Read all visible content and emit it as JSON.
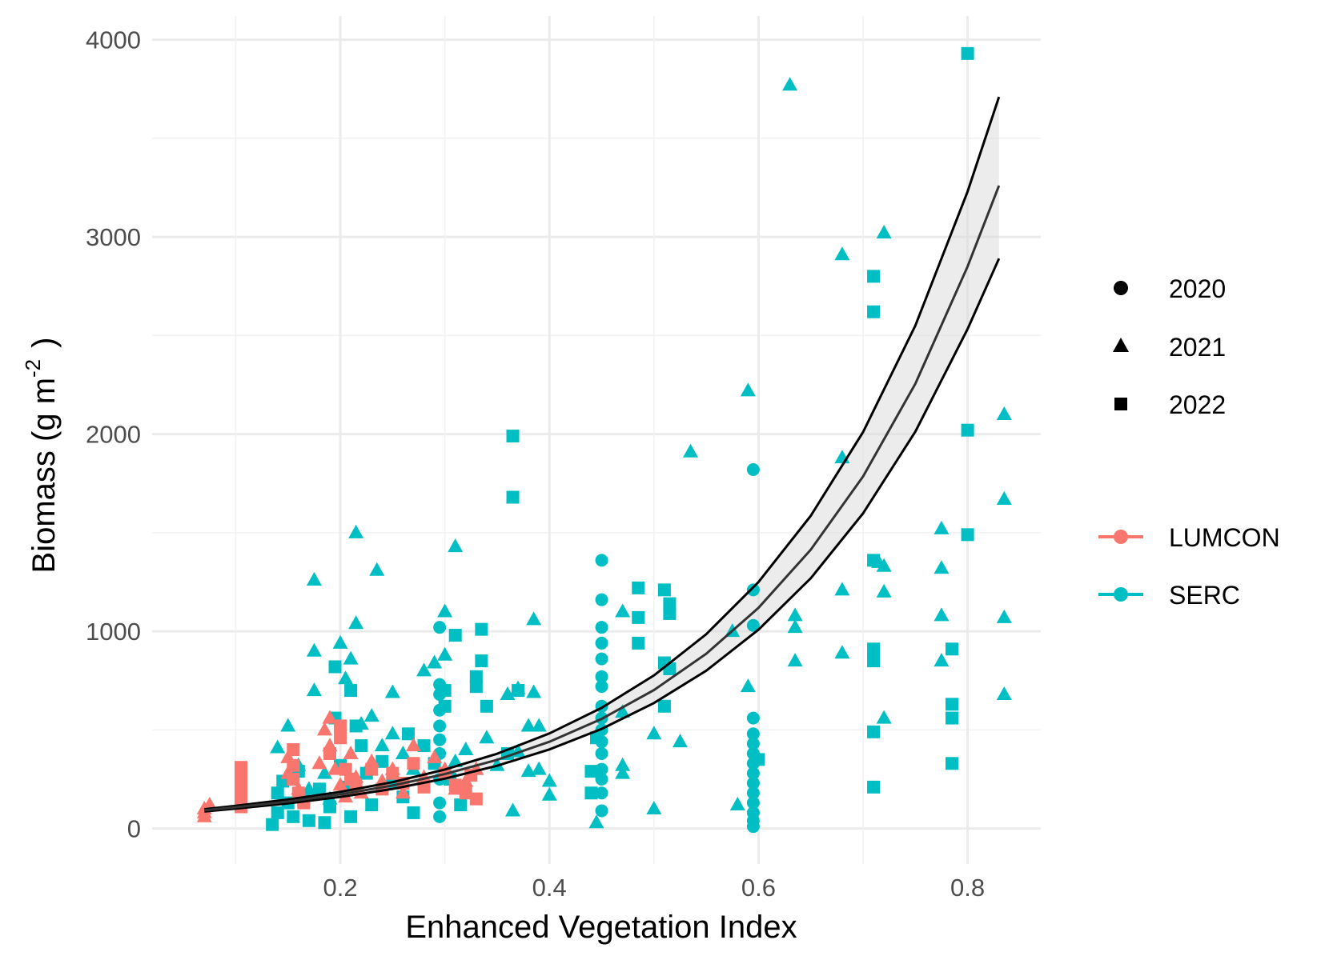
{
  "chart_data": {
    "type": "scatter",
    "title": "",
    "xlabel": "Enhanced Vegetation Index",
    "ylabel": {
      "main": "Biomass (g m",
      "superscript": "-2",
      "close": ")"
    },
    "xlim": [
      0.02,
      0.87
    ],
    "ylim": [
      -180,
      4120
    ],
    "x_ticks": [
      0.2,
      0.4,
      0.6,
      0.8
    ],
    "x_tick_labels": [
      "0.2",
      "0.4",
      "0.6",
      "0.8"
    ],
    "y_ticks": [
      0,
      1000,
      2000,
      3000,
      4000
    ],
    "y_tick_labels": [
      "0",
      "1000",
      "2000",
      "3000",
      "4000"
    ],
    "grid": true,
    "legend_position": "right",
    "shape_legend": [
      {
        "label": "2020",
        "shape": "circle"
      },
      {
        "label": "2021",
        "shape": "triangle"
      },
      {
        "label": "2022",
        "shape": "square"
      }
    ],
    "color_legend": [
      {
        "label": "LUMCON",
        "color": "#F8766D"
      },
      {
        "label": "SERC",
        "color": "#00BFC4"
      }
    ],
    "fit": {
      "color": "#000000",
      "band_color": "#d9d9d9",
      "x": [
        0.07,
        0.1,
        0.15,
        0.2,
        0.25,
        0.3,
        0.35,
        0.4,
        0.45,
        0.5,
        0.55,
        0.6,
        0.65,
        0.7,
        0.75,
        0.8,
        0.83
      ],
      "y": [
        92,
        108,
        137,
        173,
        218,
        276,
        348,
        440,
        556,
        702,
        886,
        1119,
        1414,
        1785,
        2255,
        2850,
        3260
      ],
      "y_lower": [
        86,
        101,
        127,
        160,
        201,
        253,
        318,
        401,
        505,
        636,
        800,
        1008,
        1269,
        1598,
        2012,
        2533,
        2890
      ],
      "y_upper": [
        98,
        115,
        147,
        186,
        235,
        299,
        379,
        482,
        612,
        776,
        985,
        1250,
        1586,
        2010,
        2550,
        3230,
        3710
      ],
      "y_center": [
        92,
        108,
        137,
        173,
        218,
        276,
        348,
        440,
        556,
        702,
        886,
        1119,
        1414,
        1785,
        2255,
        2850,
        3260
      ]
    },
    "series": [
      {
        "name": "SERC",
        "year": "2020",
        "shape": "circle",
        "color": "#00BFC4",
        "points": [
          [
            0.295,
            1020
          ],
          [
            0.295,
            730
          ],
          [
            0.295,
            680
          ],
          [
            0.295,
            600
          ],
          [
            0.295,
            520
          ],
          [
            0.295,
            450
          ],
          [
            0.295,
            380
          ],
          [
            0.295,
            250
          ],
          [
            0.295,
            130
          ],
          [
            0.295,
            60
          ],
          [
            0.45,
            1360
          ],
          [
            0.45,
            1160
          ],
          [
            0.45,
            1020
          ],
          [
            0.45,
            940
          ],
          [
            0.45,
            860
          ],
          [
            0.45,
            770
          ],
          [
            0.45,
            720
          ],
          [
            0.45,
            620
          ],
          [
            0.45,
            560
          ],
          [
            0.45,
            500
          ],
          [
            0.45,
            440
          ],
          [
            0.45,
            380
          ],
          [
            0.45,
            300
          ],
          [
            0.45,
            250
          ],
          [
            0.45,
            180
          ],
          [
            0.45,
            90
          ],
          [
            0.595,
            1820
          ],
          [
            0.595,
            1210
          ],
          [
            0.595,
            1030
          ],
          [
            0.595,
            560
          ],
          [
            0.595,
            480
          ],
          [
            0.595,
            430
          ],
          [
            0.595,
            380
          ],
          [
            0.595,
            330
          ],
          [
            0.595,
            280
          ],
          [
            0.595,
            230
          ],
          [
            0.595,
            180
          ],
          [
            0.595,
            130
          ],
          [
            0.595,
            80
          ],
          [
            0.595,
            40
          ],
          [
            0.595,
            10
          ]
        ]
      },
      {
        "name": "SERC",
        "year": "2021",
        "shape": "triangle",
        "color": "#00BFC4",
        "points": [
          [
            0.14,
            410
          ],
          [
            0.15,
            520
          ],
          [
            0.16,
            320
          ],
          [
            0.17,
            200
          ],
          [
            0.175,
            900
          ],
          [
            0.175,
            700
          ],
          [
            0.175,
            1260
          ],
          [
            0.185,
            280
          ],
          [
            0.19,
            150
          ],
          [
            0.2,
            940
          ],
          [
            0.205,
            760
          ],
          [
            0.21,
            860
          ],
          [
            0.215,
            1500
          ],
          [
            0.215,
            1040
          ],
          [
            0.22,
            530
          ],
          [
            0.23,
            570
          ],
          [
            0.235,
            1310
          ],
          [
            0.24,
            420
          ],
          [
            0.25,
            480
          ],
          [
            0.25,
            690
          ],
          [
            0.26,
            380
          ],
          [
            0.27,
            300
          ],
          [
            0.28,
            800
          ],
          [
            0.29,
            840
          ],
          [
            0.3,
            1100
          ],
          [
            0.3,
            880
          ],
          [
            0.31,
            1430
          ],
          [
            0.31,
            340
          ],
          [
            0.32,
            400
          ],
          [
            0.33,
            300
          ],
          [
            0.34,
            460
          ],
          [
            0.35,
            320
          ],
          [
            0.36,
            680
          ],
          [
            0.365,
            90
          ],
          [
            0.37,
            710
          ],
          [
            0.37,
            390
          ],
          [
            0.38,
            520
          ],
          [
            0.38,
            290
          ],
          [
            0.385,
            1060
          ],
          [
            0.385,
            690
          ],
          [
            0.39,
            520
          ],
          [
            0.39,
            300
          ],
          [
            0.4,
            240
          ],
          [
            0.4,
            170
          ],
          [
            0.445,
            30
          ],
          [
            0.47,
            1100
          ],
          [
            0.47,
            590
          ],
          [
            0.47,
            320
          ],
          [
            0.47,
            280
          ],
          [
            0.5,
            480
          ],
          [
            0.5,
            100
          ],
          [
            0.525,
            440
          ],
          [
            0.535,
            1910
          ],
          [
            0.575,
            1000
          ],
          [
            0.58,
            120
          ],
          [
            0.59,
            2220
          ],
          [
            0.59,
            720
          ],
          [
            0.63,
            3770
          ],
          [
            0.635,
            1080
          ],
          [
            0.635,
            1020
          ],
          [
            0.635,
            850
          ],
          [
            0.68,
            2910
          ],
          [
            0.68,
            1880
          ],
          [
            0.68,
            1210
          ],
          [
            0.68,
            890
          ],
          [
            0.715,
            1350
          ],
          [
            0.72,
            3020
          ],
          [
            0.72,
            1330
          ],
          [
            0.72,
            1200
          ],
          [
            0.72,
            560
          ],
          [
            0.775,
            1520
          ],
          [
            0.775,
            1320
          ],
          [
            0.775,
            1080
          ],
          [
            0.775,
            850
          ],
          [
            0.835,
            2100
          ],
          [
            0.835,
            1670
          ],
          [
            0.835,
            1070
          ],
          [
            0.835,
            680
          ]
        ]
      },
      {
        "name": "SERC",
        "year": "2022",
        "shape": "square",
        "color": "#00BFC4",
        "points": [
          [
            0.135,
            20
          ],
          [
            0.14,
            80
          ],
          [
            0.14,
            180
          ],
          [
            0.145,
            240
          ],
          [
            0.15,
            130
          ],
          [
            0.155,
            60
          ],
          [
            0.16,
            290
          ],
          [
            0.165,
            140
          ],
          [
            0.17,
            40
          ],
          [
            0.18,
            200
          ],
          [
            0.185,
            30
          ],
          [
            0.19,
            110
          ],
          [
            0.195,
            820
          ],
          [
            0.195,
            560
          ],
          [
            0.2,
            320
          ],
          [
            0.205,
            210
          ],
          [
            0.21,
            700
          ],
          [
            0.21,
            60
          ],
          [
            0.215,
            520
          ],
          [
            0.22,
            420
          ],
          [
            0.225,
            280
          ],
          [
            0.23,
            120
          ],
          [
            0.24,
            340
          ],
          [
            0.25,
            230
          ],
          [
            0.26,
            160
          ],
          [
            0.265,
            480
          ],
          [
            0.27,
            80
          ],
          [
            0.28,
            420
          ],
          [
            0.29,
            330
          ],
          [
            0.3,
            700
          ],
          [
            0.3,
            620
          ],
          [
            0.305,
            250
          ],
          [
            0.31,
            980
          ],
          [
            0.315,
            120
          ],
          [
            0.33,
            770
          ],
          [
            0.33,
            720
          ],
          [
            0.335,
            850
          ],
          [
            0.335,
            1010
          ],
          [
            0.34,
            620
          ],
          [
            0.36,
            380
          ],
          [
            0.365,
            1990
          ],
          [
            0.365,
            1680
          ],
          [
            0.37,
            700
          ],
          [
            0.44,
            290
          ],
          [
            0.44,
            180
          ],
          [
            0.445,
            460
          ],
          [
            0.485,
            1220
          ],
          [
            0.485,
            1070
          ],
          [
            0.485,
            940
          ],
          [
            0.51,
            1210
          ],
          [
            0.51,
            840
          ],
          [
            0.515,
            1140
          ],
          [
            0.515,
            1090
          ],
          [
            0.515,
            810
          ],
          [
            0.51,
            620
          ],
          [
            0.6,
            350
          ],
          [
            0.71,
            2800
          ],
          [
            0.71,
            2620
          ],
          [
            0.71,
            1360
          ],
          [
            0.71,
            910
          ],
          [
            0.71,
            850
          ],
          [
            0.71,
            490
          ],
          [
            0.71,
            210
          ],
          [
            0.785,
            910
          ],
          [
            0.785,
            630
          ],
          [
            0.785,
            560
          ],
          [
            0.785,
            330
          ],
          [
            0.8,
            3930
          ],
          [
            0.8,
            2020
          ],
          [
            0.8,
            1490
          ]
        ]
      },
      {
        "name": "LUMCON",
        "year": "2021",
        "shape": "triangle",
        "color": "#F8766D",
        "points": [
          [
            0.07,
            60
          ],
          [
            0.07,
            100
          ],
          [
            0.07,
            80
          ],
          [
            0.075,
            120
          ],
          [
            0.15,
            360
          ],
          [
            0.15,
            280
          ],
          [
            0.16,
            200
          ],
          [
            0.18,
            330
          ],
          [
            0.185,
            500
          ],
          [
            0.19,
            560
          ],
          [
            0.19,
            420
          ],
          [
            0.195,
            300
          ],
          [
            0.2,
            220
          ],
          [
            0.205,
            160
          ],
          [
            0.21,
            380
          ],
          [
            0.215,
            260
          ],
          [
            0.22,
            180
          ],
          [
            0.23,
            340
          ],
          [
            0.24,
            240
          ],
          [
            0.25,
            300
          ],
          [
            0.26,
            180
          ],
          [
            0.27,
            420
          ],
          [
            0.28,
            260
          ],
          [
            0.29,
            360
          ],
          [
            0.3,
            300
          ],
          [
            0.31,
            200
          ],
          [
            0.32,
            240
          ],
          [
            0.33,
            300
          ]
        ]
      },
      {
        "name": "LUMCON",
        "year": "2022",
        "shape": "square",
        "color": "#F8766D",
        "points": [
          [
            0.105,
            310
          ],
          [
            0.105,
            250
          ],
          [
            0.105,
            200
          ],
          [
            0.105,
            150
          ],
          [
            0.105,
            110
          ],
          [
            0.155,
            400
          ],
          [
            0.155,
            320
          ],
          [
            0.155,
            250
          ],
          [
            0.16,
            180
          ],
          [
            0.165,
            130
          ],
          [
            0.19,
            380
          ],
          [
            0.2,
            520
          ],
          [
            0.2,
            460
          ],
          [
            0.205,
            300
          ],
          [
            0.21,
            250
          ],
          [
            0.215,
            200
          ],
          [
            0.23,
            300
          ],
          [
            0.24,
            200
          ],
          [
            0.25,
            280
          ],
          [
            0.26,
            230
          ],
          [
            0.27,
            330
          ],
          [
            0.28,
            210
          ],
          [
            0.3,
            280
          ],
          [
            0.31,
            220
          ],
          [
            0.32,
            180
          ],
          [
            0.325,
            270
          ],
          [
            0.33,
            150
          ]
        ]
      }
    ]
  }
}
